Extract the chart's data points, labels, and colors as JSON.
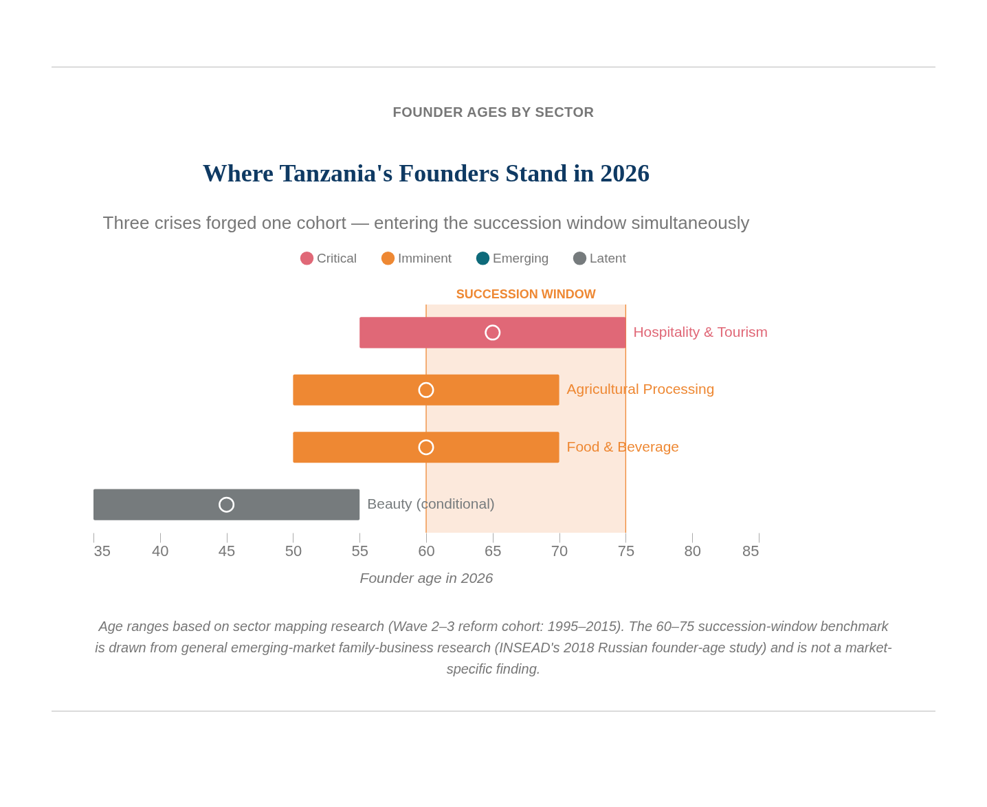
{
  "chart_data": {
    "type": "bar",
    "orientation": "horizontal",
    "title": "Where Tanzania's Founders Stand in 2026",
    "subtitle": "Three crises forged one cohort — entering the succession window simultaneously",
    "xlabel": "Founder age in 2026",
    "categories": [
      "Hospitality & Tourism",
      "Agricultural Processing",
      "Food & Beverage",
      "Beauty (conditional)"
    ],
    "series": [
      {
        "name": "Critical",
        "color": "#e06877",
        "values": [
          20,
          null,
          null,
          null
        ],
        "base": [
          55,
          null,
          null,
          null
        ]
      },
      {
        "name": "Imminent",
        "color": "#ee8833",
        "values": [
          null,
          20,
          20,
          null
        ],
        "base": [
          null,
          50,
          50,
          null
        ]
      },
      {
        "name": "Emerging",
        "color": "#0e6a7a",
        "values": [
          null,
          null,
          null,
          null
        ]
      },
      {
        "name": "Latent",
        "color": "#767b7d",
        "values": [
          null,
          null,
          null,
          20
        ],
        "base": [
          null,
          null,
          null,
          35
        ]
      },
      {
        "type": "scatter",
        "color": "#ffffff",
        "x": [
          "Hospitality & Tourism",
          "Agricultural Processing",
          "Food & Beverage",
          "Beauty (conditional)"
        ],
        "values": [
          65,
          60,
          60,
          45
        ],
        "marker": "circle"
      }
    ],
    "xlim": [
      35,
      85
    ],
    "xticks": [
      35,
      40,
      45,
      50,
      55,
      60,
      65,
      70,
      75,
      80,
      85
    ],
    "ref_lines": [
      {
        "axis": "x",
        "value": 60,
        "color": "#ee8833"
      },
      {
        "axis": "x",
        "value": 75,
        "color": "#ee8833"
      }
    ],
    "bands": [
      {
        "axis": "x",
        "from": 60,
        "to": 75,
        "label": "SUCCESSION WINDOW",
        "color": "#fce9dc"
      }
    ],
    "legend": "top",
    "grid": false,
    "annotations": [
      "FOUNDER AGES BY SECTOR",
      "Age ranges based on sector mapping research (Wave 2–3 reform cohort: 1995–2015). The 60–75 succession-window benchmark is drawn from general emerging-market family-business research (INSEAD's 2018 Russian founder-age study) and is not a market-specific finding."
    ]
  }
}
